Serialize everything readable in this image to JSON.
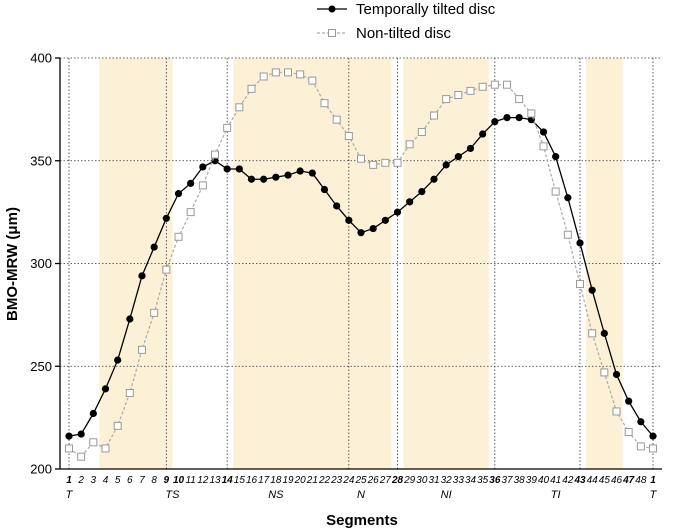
{
  "chart_data": {
    "type": "line",
    "ylabel": "BMO-MRW (μm)",
    "xlabel": "Segments",
    "ylim": [
      200,
      400
    ],
    "yticks": [
      200,
      250,
      300,
      350,
      400
    ],
    "grid": "dotted",
    "legend_position": "top",
    "x": [
      1,
      2,
      3,
      4,
      5,
      6,
      7,
      8,
      9,
      10,
      11,
      12,
      13,
      14,
      15,
      16,
      17,
      18,
      19,
      20,
      21,
      22,
      23,
      24,
      25,
      26,
      27,
      28,
      29,
      30,
      31,
      32,
      33,
      34,
      35,
      36,
      37,
      38,
      39,
      40,
      41,
      42,
      43,
      44,
      45,
      46,
      47,
      48,
      1
    ],
    "series": [
      {
        "name": "Temporally tilted disc",
        "color": "#000000",
        "values": [
          216,
          217,
          227,
          239,
          253,
          273,
          294,
          308,
          322,
          334,
          339,
          347,
          350,
          346,
          346,
          341,
          341,
          342,
          343,
          345,
          344,
          336,
          328,
          321,
          315,
          317,
          321,
          325,
          330,
          335,
          341,
          348,
          352,
          356,
          363,
          369,
          371,
          371,
          370,
          364,
          352,
          332,
          310,
          287,
          266,
          246,
          233,
          223,
          216
        ]
      },
      {
        "name": "Non-tilted disc",
        "color": "#aaaaaa",
        "values": [
          210,
          206,
          213,
          210,
          221,
          237,
          258,
          276,
          297,
          313,
          325,
          338,
          353,
          366,
          376,
          385,
          391,
          393,
          393,
          392,
          389,
          378,
          370,
          362,
          351,
          348,
          349,
          349,
          358,
          364,
          372,
          380,
          382,
          384,
          386,
          387,
          387,
          380,
          373,
          357,
          335,
          314,
          290,
          266,
          247,
          228,
          218,
          211,
          210
        ]
      }
    ],
    "sector_labels": [
      "T",
      "TS",
      "NS",
      "N",
      "NI",
      "TI",
      "T"
    ],
    "shaded_segment_ranges": [
      [
        4,
        9
      ],
      [
        15,
        27
      ],
      [
        29,
        35
      ],
      [
        44,
        46
      ]
    ],
    "bold_tick_segments": [
      1,
      9,
      10,
      14,
      28,
      36,
      43,
      47,
      1
    ],
    "band_color": "#fcf1d6"
  }
}
